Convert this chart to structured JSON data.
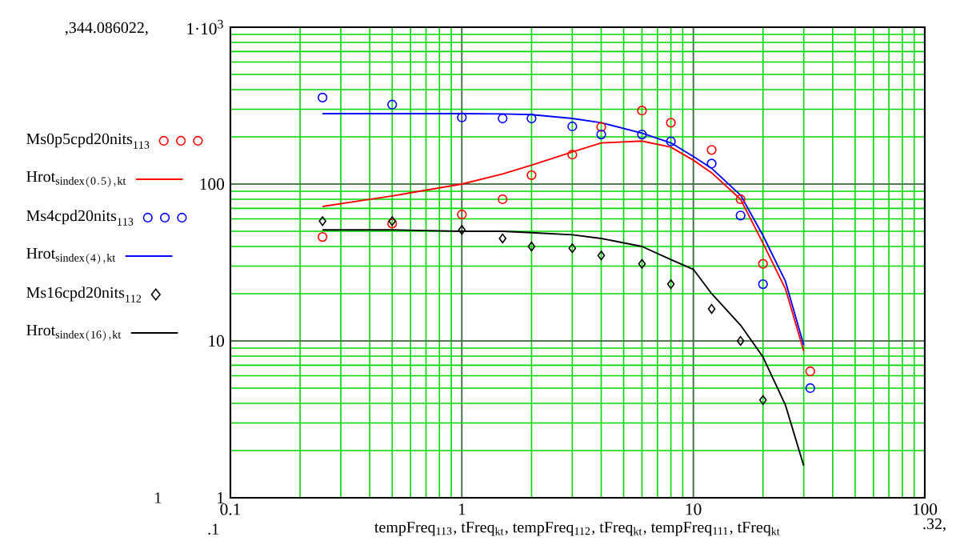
{
  "chart_data": {
    "type": "scatter",
    "log": "xy",
    "grid": true,
    "legend": "left",
    "xlabel": "tempFreq$_{113}$, tFreq$_{kt}$, tempFreq$_{112}$, tFreq$_{kt}$, tempFreq$_{111}$, tFreq$_{kt}$",
    "xlim": [
      0.1,
      100
    ],
    "ylim": [
      1,
      1000
    ],
    "xticks": [
      0.1,
      1,
      10,
      100
    ],
    "yticks": [
      1,
      10,
      100,
      {
        "value": 1000,
        "label": "1·10$^{3}$"
      }
    ],
    "annotations": [
      ",344.086022,",
      "1",
      ".1",
      ".32,"
    ],
    "series": [
      {
        "name": "\\mathrm{Ms0p5cpd20nits}_{\\mathrm{113}}",
        "type": "scatter",
        "marker": "circle",
        "color": "#ff0000",
        "x": [
          0.25,
          0.5,
          1,
          1.5,
          2,
          3,
          4,
          6,
          8,
          12,
          16,
          20,
          32
        ],
        "values": [
          46,
          56,
          64,
          80,
          114,
          154,
          231,
          294,
          246,
          165,
          80,
          31,
          6.4
        ]
      },
      {
        "name": "\\mathrm{Hrot}_{\\mathrm{sindex(0.5),kt}}",
        "type": "line",
        "color": "#ff0000",
        "x": [
          0.25,
          0.5,
          1,
          1.5,
          2,
          3,
          4,
          6,
          8,
          10,
          12,
          16,
          20,
          25,
          30
        ],
        "values": [
          72,
          84,
          100,
          116,
          132,
          160,
          183,
          188,
          172,
          142,
          118,
          80,
          42,
          21.5,
          8.6
        ]
      },
      {
        "name": "\\mathrm{Ms4cpd20nits}_{\\mathrm{113}}",
        "type": "scatter",
        "marker": "circle",
        "color": "#0000ff",
        "x": [
          0.25,
          0.5,
          1,
          1.5,
          2,
          3,
          4,
          6,
          8,
          12,
          16,
          20,
          32
        ],
        "values": [
          356,
          321,
          266,
          262,
          262,
          233,
          207,
          207,
          187,
          135,
          63,
          23,
          5.0
        ]
      },
      {
        "name": "\\mathrm{Hrot}_{\\mathrm{sindex(4),kt}}",
        "type": "line",
        "color": "#0000ff",
        "x": [
          0.25,
          0.5,
          1,
          1.5,
          2,
          3,
          4,
          6,
          8,
          10,
          12,
          16,
          20,
          25,
          30
        ],
        "values": [
          281,
          281,
          281,
          280,
          277,
          262,
          246,
          211,
          183,
          150,
          126,
          85,
          47,
          24,
          9.4
        ]
      },
      {
        "name": "\\mathrm{Ms16cpd20nits}_{\\mathrm{112}}",
        "type": "scatter",
        "marker": "diamond",
        "color": "#000000",
        "x": [
          0.25,
          0.5,
          1,
          1.5,
          2,
          3,
          4,
          6,
          8,
          12,
          16,
          20
        ],
        "values": [
          58,
          58,
          51,
          45,
          40,
          39,
          35,
          31,
          23,
          16,
          10,
          4.2
        ]
      },
      {
        "name": "\\mathrm{Hrot}_{\\mathrm{sindex(16),kt}}",
        "type": "line",
        "color": "#000000",
        "x": [
          0.25,
          0.5,
          1,
          1.5,
          2,
          3,
          4,
          6,
          8,
          10,
          12,
          16,
          20,
          25,
          30
        ],
        "values": [
          51,
          51,
          50,
          50,
          49,
          47.5,
          45,
          40,
          33,
          28.6,
          20,
          12.6,
          7.9,
          3.9,
          1.6
        ]
      }
    ]
  }
}
